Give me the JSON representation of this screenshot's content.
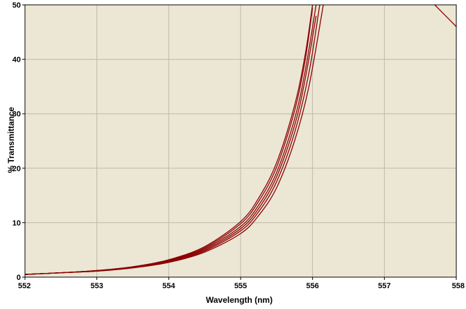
{
  "chart_data": {
    "type": "line",
    "title": "",
    "xlabel": "Wavelength (nm)",
    "ylabel": "% Transmittance",
    "xlim": [
      552,
      558
    ],
    "ylim": [
      0,
      50
    ],
    "x_ticks": [
      "552",
      "553",
      "554",
      "555",
      "556",
      "557",
      "558"
    ],
    "y_ticks": [
      "0",
      "10",
      "20",
      "30",
      "40",
      "50"
    ],
    "grid": true,
    "legend": "none",
    "colors": {
      "plot_bg": "#ece6d5",
      "grid": "#bdb8a8",
      "line": "#8b0000"
    },
    "series": [
      {
        "x": [
          552,
          552.5,
          553,
          553.5,
          554,
          554.5,
          555,
          555.25,
          555.5,
          555.75,
          555.9,
          556.0
        ],
        "y": [
          0.5,
          0.8,
          1.2,
          1.9,
          3.2,
          5.6,
          10.2,
          14.5,
          21,
          31.5,
          41,
          50
        ]
      },
      {
        "x": [
          552,
          552.5,
          553,
          553.5,
          554,
          554.5,
          555,
          555.25,
          555.5,
          555.75,
          555.9,
          556.0
        ],
        "y": [
          0.5,
          0.8,
          1.2,
          1.9,
          3.1,
          5.4,
          9.8,
          13.9,
          20.2,
          30.5,
          40,
          49.5
        ]
      },
      {
        "x": [
          552,
          552.5,
          553,
          553.5,
          554,
          554.5,
          555,
          555.25,
          555.5,
          555.75,
          555.9,
          556.05
        ],
        "y": [
          0.5,
          0.8,
          1.2,
          1.8,
          3.0,
          5.2,
          9.3,
          13.2,
          19.2,
          29.0,
          38.0,
          50
        ]
      },
      {
        "x": [
          552,
          552.5,
          553,
          553.5,
          554,
          554.5,
          555,
          555.25,
          555.5,
          555.75,
          555.9,
          556.05
        ],
        "y": [
          0.5,
          0.8,
          1.2,
          1.8,
          2.9,
          5.0,
          8.9,
          12.6,
          18.4,
          27.8,
          36.5,
          48
        ]
      },
      {
        "x": [
          552,
          552.5,
          553,
          553.5,
          554,
          554.5,
          555,
          555.25,
          555.5,
          555.75,
          555.95,
          556.1
        ],
        "y": [
          0.5,
          0.8,
          1.1,
          1.7,
          2.8,
          4.8,
          8.5,
          12.0,
          17.5,
          26.5,
          37.5,
          50
        ]
      },
      {
        "x": [
          552,
          552.5,
          553,
          553.5,
          554,
          554.5,
          555,
          555.25,
          555.5,
          555.75,
          555.95,
          556.15
        ],
        "y": [
          0.5,
          0.8,
          1.1,
          1.7,
          2.7,
          4.6,
          8.0,
          11.3,
          16.4,
          25.0,
          35.0,
          50
        ]
      },
      {
        "x": [
          557.7,
          558
        ],
        "y": [
          50,
          46
        ]
      }
    ]
  }
}
